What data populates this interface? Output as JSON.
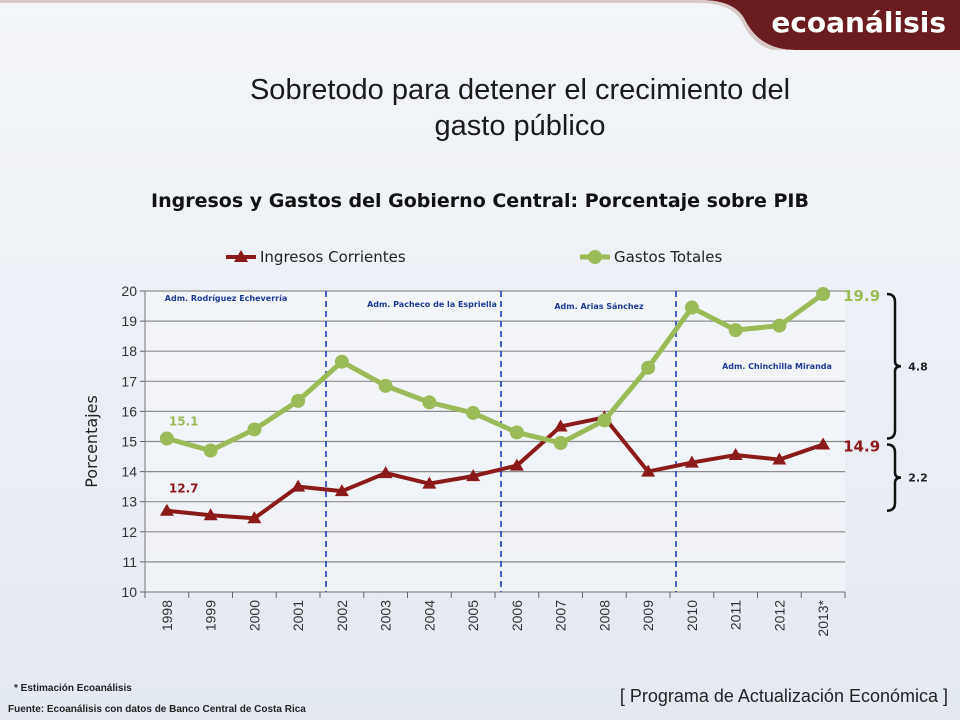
{
  "header": {
    "brand": "ecoanálisis"
  },
  "slide_title_line1": "Sobretodo para detener el crecimiento del",
  "slide_title_line2": "gasto público",
  "footnote": "* Estimación Ecoanálisis",
  "source": "Fuente: Ecoanálisis con datos de Banco Central de Costa Rica",
  "program": "[ Programa de Actualización Económica ]",
  "colors": {
    "brand_bar": "#6b1c20",
    "series_ingresos": "#8b1a1a",
    "series_gastos": "#9bbb59",
    "divider": "#1f3fbf",
    "admin_label": "#1f3a93"
  },
  "chart_data": {
    "type": "line",
    "title": "Ingresos y Gastos del Gobierno Central: Porcentaje sobre PIB",
    "xlabel": "",
    "ylabel": "Porcentajes",
    "ylim": [
      10,
      20
    ],
    "yticks": [
      "10",
      "11",
      "12",
      "13",
      "14",
      "15",
      "16",
      "17",
      "18",
      "19",
      "20"
    ],
    "grid": true,
    "legend_position": "top",
    "categories": [
      "1998",
      "1999",
      "2000",
      "2001",
      "2002",
      "2003",
      "2004",
      "2005",
      "2006",
      "2007",
      "2008",
      "2009",
      "2010",
      "2011",
      "2012",
      "2013*"
    ],
    "series": [
      {
        "name": "Ingresos Corrientes",
        "marker": "triangle",
        "values": [
          12.7,
          12.55,
          12.45,
          13.5,
          13.35,
          13.95,
          13.6,
          13.85,
          14.2,
          15.5,
          15.8,
          14.0,
          14.3,
          14.55,
          14.4,
          14.9
        ]
      },
      {
        "name": "Gastos Totales",
        "marker": "circle",
        "values": [
          15.1,
          14.7,
          15.4,
          16.35,
          17.65,
          16.85,
          16.3,
          15.95,
          15.3,
          14.95,
          15.7,
          17.45,
          19.45,
          18.7,
          18.85,
          19.9
        ]
      }
    ],
    "point_labels": [
      {
        "series": "Gastos Totales",
        "index": 0,
        "text": "15.1"
      },
      {
        "series": "Ingresos Corrientes",
        "index": 0,
        "text": "12.7"
      },
      {
        "series": "Gastos Totales",
        "index": 15,
        "text": "19.9"
      },
      {
        "series": "Ingresos Corrientes",
        "index": 15,
        "text": "14.9"
      }
    ],
    "periods": [
      {
        "label": "Adm. Rodríguez Echeverría",
        "start": "1998",
        "end": "2002"
      },
      {
        "label": "Adm. Pacheco de la Espriella",
        "start": "2002",
        "end": "2006"
      },
      {
        "label": "Adm. Arias Sánchez",
        "start": "2006",
        "end": "2010"
      },
      {
        "label": "Adm. Chinchilla Miranda",
        "start": "2010",
        "end": "2013*"
      }
    ],
    "divider_years": [
      "2002",
      "2006",
      "2010"
    ],
    "brackets": [
      {
        "label": "4.8",
        "from": 15.1,
        "to": 19.9
      },
      {
        "label": "2.2",
        "from": 12.7,
        "to": 14.9
      }
    ]
  }
}
